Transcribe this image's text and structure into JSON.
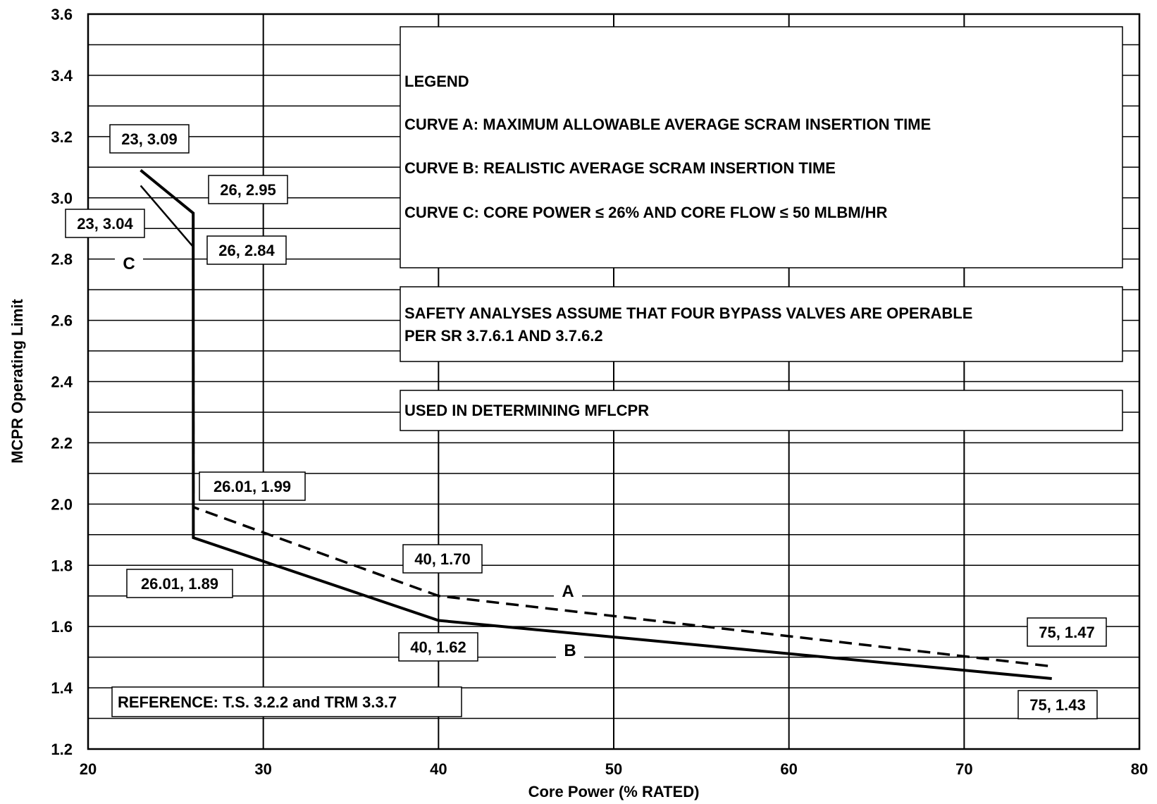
{
  "chart_data": {
    "type": "line",
    "xlabel": "Core Power (% RATED)",
    "ylabel": "MCPR Operating Limit",
    "xlim": [
      20,
      80
    ],
    "ylim": [
      1.2,
      3.6
    ],
    "x_ticks": [
      "20",
      "30",
      "40",
      "50",
      "60",
      "70",
      "80"
    ],
    "y_ticks": [
      "1.2",
      "1.4",
      "1.6",
      "1.8",
      "2.0",
      "2.2",
      "2.4",
      "2.6",
      "2.8",
      "3.0",
      "3.2",
      "3.4",
      "3.6"
    ],
    "grid": true,
    "series": [
      {
        "name": "A",
        "style": "dashed",
        "x": [
          23,
          26,
          26,
          26.01,
          40,
          75
        ],
        "y": [
          3.09,
          2.95,
          2.84,
          1.99,
          1.7,
          1.47
        ]
      },
      {
        "name": "B",
        "style": "solid",
        "x": [
          23,
          26,
          26,
          26.01,
          40,
          75
        ],
        "y": [
          3.09,
          2.95,
          2.84,
          1.89,
          1.62,
          1.43
        ]
      },
      {
        "name": "C",
        "style": "solid",
        "x": [
          23,
          26
        ],
        "y": [
          3.04,
          2.84
        ]
      }
    ],
    "point_labels": [
      "23, 3.09",
      "26, 2.95",
      "23, 3.04",
      "26, 2.84",
      "26.01, 1.99",
      "26.01, 1.89",
      "40, 1.70",
      "40, 1.62",
      "75, 1.47",
      "75, 1.43"
    ],
    "legend": {
      "title": "LEGEND",
      "entries": [
        "CURVE A: MAXIMUM ALLOWABLE AVERAGE SCRAM INSERTION TIME",
        "CURVE B: REALISTIC AVERAGE SCRAM INSERTION TIME",
        "CURVE C: CORE POWER ≤ 26% AND CORE FLOW ≤ 50 MLBM/HR"
      ]
    },
    "notes": [
      "SAFETY ANALYSES ASSUME THAT FOUR BYPASS VALVES ARE OPERABLE",
      "PER SR 3.7.6.1 AND 3.7.6.2",
      "USED IN DETERMINING MFLCPR"
    ],
    "reference": "REFERENCE: T.S. 3.2.2 and TRM 3.3.7"
  }
}
